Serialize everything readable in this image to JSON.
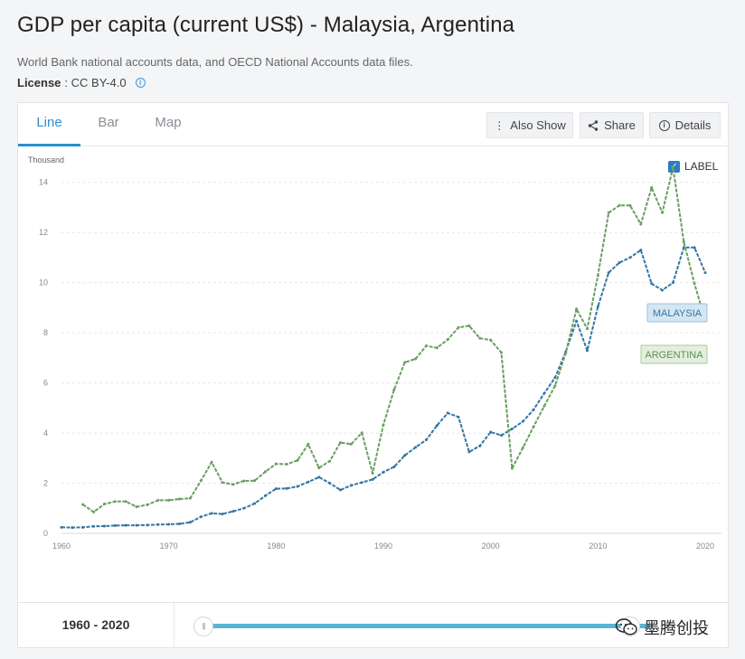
{
  "header": {
    "title": "GDP per capita (current US$) - Malaysia, Argentina",
    "source": "World Bank national accounts data, and OECD National Accounts data files.",
    "license_label": "License",
    "license_value": ": CC BY-4.0",
    "info_glyph": "i"
  },
  "tabs": [
    {
      "label": "Line",
      "active": true
    },
    {
      "label": "Bar",
      "active": false
    },
    {
      "label": "Map",
      "active": false
    }
  ],
  "toolbar": {
    "also_show": "Also Show",
    "share": "Share",
    "details": "Details"
  },
  "label_toggle": {
    "text": "LABEL",
    "checked": true
  },
  "range": {
    "label": "1960 - 2020"
  },
  "watermark": {
    "text": "墨腾创投"
  },
  "colors": {
    "malaysia": "#3476a2",
    "argentina": "#6a9e62",
    "accent": "#2b8fd0"
  },
  "chart_data": {
    "type": "line",
    "title": "GDP per capita (current US$) - Malaysia, Argentina",
    "ylabel": "Thousand",
    "xlabel": "",
    "ylim": [
      0,
      15
    ],
    "xlim": [
      1960,
      2020
    ],
    "yticks": [
      0,
      2,
      4,
      6,
      8,
      10,
      12,
      14
    ],
    "xticks": [
      1960,
      1970,
      1980,
      1990,
      2000,
      2010,
      2020
    ],
    "grid": true,
    "series": [
      {
        "name": "MALAYSIA",
        "start_year": 1960,
        "values": [
          0.24,
          0.23,
          0.24,
          0.28,
          0.29,
          0.31,
          0.32,
          0.32,
          0.33,
          0.35,
          0.36,
          0.38,
          0.44,
          0.66,
          0.8,
          0.77,
          0.88,
          1.0,
          1.19,
          1.5,
          1.78,
          1.79,
          1.87,
          2.05,
          2.24,
          2.0,
          1.73,
          1.91,
          2.03,
          2.15,
          2.44,
          2.65,
          3.11,
          3.43,
          3.73,
          4.3,
          4.8,
          4.64,
          3.25,
          3.49,
          4.04,
          3.91,
          4.17,
          4.46,
          4.93,
          5.59,
          6.21,
          7.24,
          8.47,
          7.29,
          9.04,
          10.4,
          10.8,
          11.0,
          11.3,
          9.96,
          9.7,
          10.0,
          11.4,
          11.4,
          10.4
        ]
      },
      {
        "name": "ARGENTINA",
        "start_year": 1962,
        "values": [
          1.15,
          0.85,
          1.17,
          1.27,
          1.27,
          1.06,
          1.14,
          1.32,
          1.32,
          1.37,
          1.4,
          2.1,
          2.84,
          2.03,
          1.95,
          2.09,
          2.1,
          2.46,
          2.77,
          2.76,
          2.91,
          3.56,
          2.61,
          2.88,
          3.62,
          3.56,
          4.01,
          2.4,
          4.33,
          5.73,
          6.82,
          6.96,
          7.48,
          7.4,
          7.73,
          8.21,
          8.28,
          7.78,
          7.71,
          7.21,
          2.59,
          3.41,
          4.25,
          5.08,
          5.88,
          7.19,
          8.95,
          8.16,
          10.28,
          12.79,
          13.08,
          13.08,
          12.33,
          13.79,
          12.79,
          14.6,
          11.63,
          9.96,
          8.5
        ]
      }
    ]
  }
}
